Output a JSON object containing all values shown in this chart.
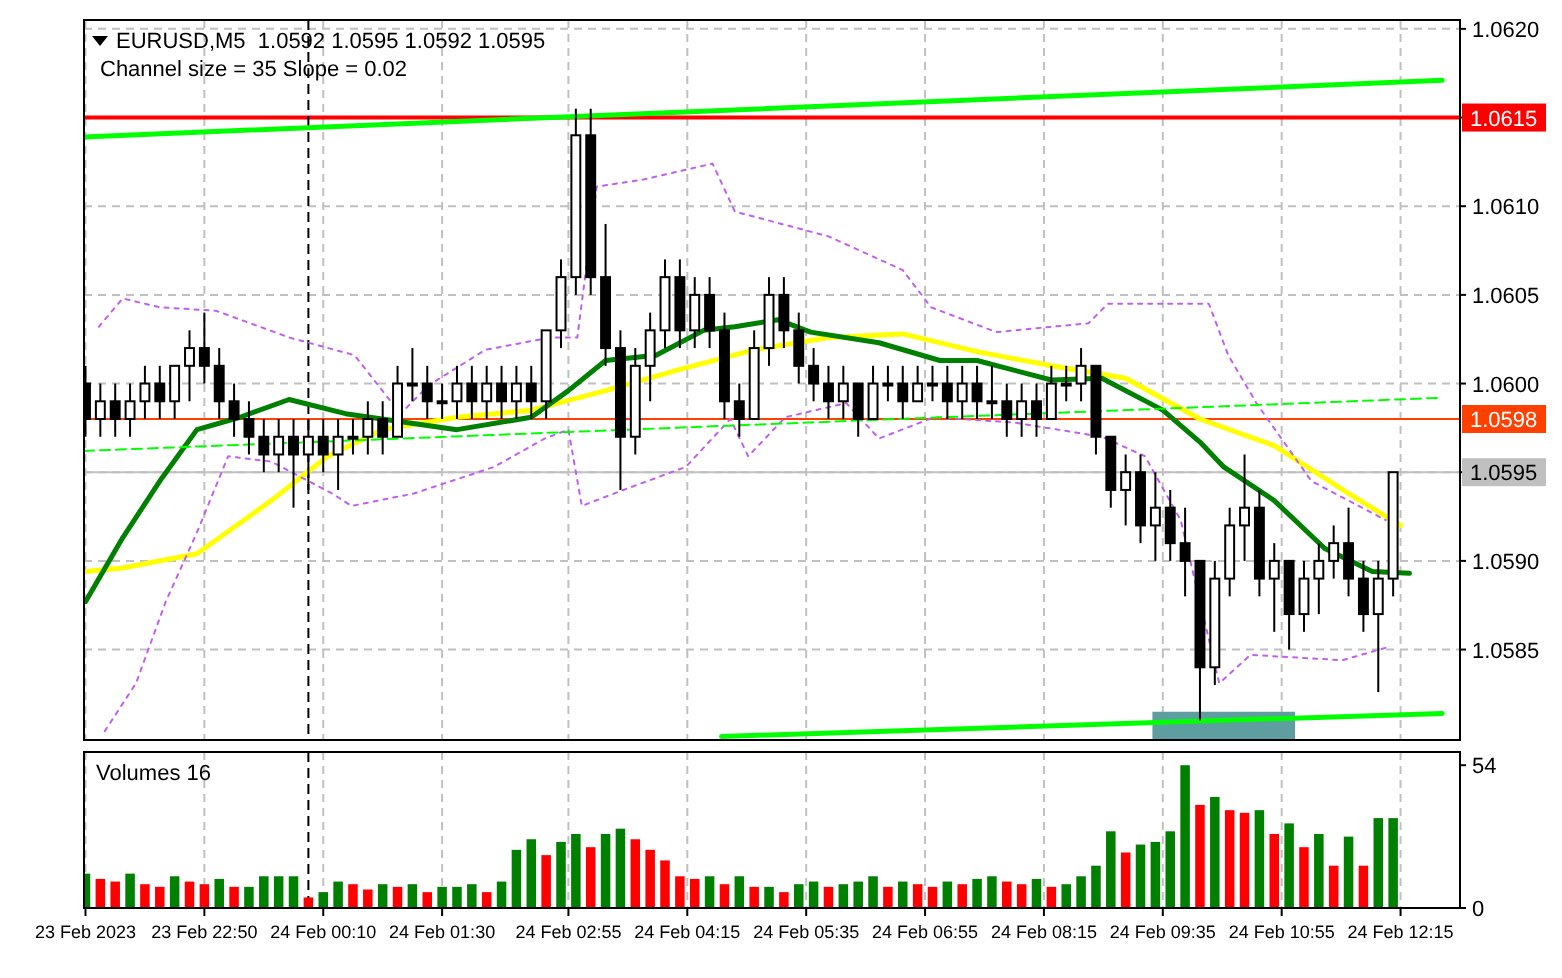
{
  "chart_data": [
    {
      "type": "candlestick",
      "title": "EURUSD,M5  1.0592 1.0595 1.0592 1.0595",
      "subtitle": "Channel size = 35 Slope = 0.02",
      "color": "#000000",
      "x": [
        "2023-02-23T21:30",
        "2023-02-23T21:40",
        "2023-02-23T21:50",
        "2023-02-23T22:00",
        "2023-02-23T22:10",
        "2023-02-23T22:20",
        "2023-02-23T22:30",
        "2023-02-23T22:40",
        "2023-02-23T22:50",
        "2023-02-23T23:00",
        "2023-02-23T23:10",
        "2023-02-23T23:20",
        "2023-02-23T23:30",
        "2023-02-23T23:40",
        "2023-02-23T23:50",
        "2023-02-24T00:00",
        "2023-02-24T00:10",
        "2023-02-24T00:20",
        "2023-02-24T00:30",
        "2023-02-24T00:40",
        "2023-02-24T00:50",
        "2023-02-24T01:00",
        "2023-02-24T01:10",
        "2023-02-24T01:20",
        "2023-02-24T01:30",
        "2023-02-24T01:40",
        "2023-02-24T01:50",
        "2023-02-24T02:00",
        "2023-02-24T02:10",
        "2023-02-24T02:20",
        "2023-02-24T02:30",
        "2023-02-24T02:40",
        "2023-02-24T02:50",
        "2023-02-24T03:00",
        "2023-02-24T03:10",
        "2023-02-24T03:20",
        "2023-02-24T03:30",
        "2023-02-24T03:40",
        "2023-02-24T03:50",
        "2023-02-24T04:00",
        "2023-02-24T04:10",
        "2023-02-24T04:20",
        "2023-02-24T04:30",
        "2023-02-24T04:40",
        "2023-02-24T04:50",
        "2023-02-24T05:00",
        "2023-02-24T05:10",
        "2023-02-24T05:20",
        "2023-02-24T05:30",
        "2023-02-24T05:40",
        "2023-02-24T05:50",
        "2023-02-24T06:00",
        "2023-02-24T06:10",
        "2023-02-24T06:20",
        "2023-02-24T06:30",
        "2023-02-24T06:40",
        "2023-02-24T06:50",
        "2023-02-24T07:00",
        "2023-02-24T07:10",
        "2023-02-24T07:20",
        "2023-02-24T07:30",
        "2023-02-24T07:40",
        "2023-02-24T07:50",
        "2023-02-24T08:00",
        "2023-02-24T08:10",
        "2023-02-24T08:20",
        "2023-02-24T08:30",
        "2023-02-24T08:40",
        "2023-02-24T08:50",
        "2023-02-24T09:00",
        "2023-02-24T09:10",
        "2023-02-24T09:20",
        "2023-02-24T09:30",
        "2023-02-24T09:40",
        "2023-02-24T09:50",
        "2023-02-24T10:00",
        "2023-02-24T10:10",
        "2023-02-24T10:20",
        "2023-02-24T10:30",
        "2023-02-24T10:40",
        "2023-02-24T10:50",
        "2023-02-24T11:00",
        "2023-02-24T11:10",
        "2023-02-24T11:20",
        "2023-02-24T11:30",
        "2023-02-24T11:40",
        "2023-02-24T11:50",
        "2023-02-24T12:00",
        "2023-02-24T12:10"
      ],
      "ohlc": [
        [
          1.06,
          1.0601,
          1.0597,
          1.0598
        ],
        [
          1.0598,
          1.06,
          1.0597,
          1.0599
        ],
        [
          1.0599,
          1.06,
          1.0597,
          1.0598
        ],
        [
          1.0598,
          1.06,
          1.0597,
          1.0599
        ],
        [
          1.0599,
          1.0601,
          1.0598,
          1.06
        ],
        [
          1.06,
          1.0601,
          1.0598,
          1.0599
        ],
        [
          1.0599,
          1.0601,
          1.0598,
          1.0601
        ],
        [
          1.0601,
          1.0603,
          1.0599,
          1.0602
        ],
        [
          1.0602,
          1.0604,
          1.06,
          1.0601
        ],
        [
          1.0601,
          1.0602,
          1.0598,
          1.0599
        ],
        [
          1.0599,
          1.06,
          1.0597,
          1.0598
        ],
        [
          1.0598,
          1.0599,
          1.0596,
          1.0597
        ],
        [
          1.0597,
          1.0598,
          1.0595,
          1.0596
        ],
        [
          1.0596,
          1.0598,
          1.0595,
          1.0597
        ],
        [
          1.0597,
          1.0598,
          1.0593,
          1.0596
        ],
        [
          1.0596,
          1.0598,
          1.0594,
          1.0597
        ],
        [
          1.0597,
          1.0598,
          1.0595,
          1.0596
        ],
        [
          1.0596,
          1.0598,
          1.0594,
          1.0597
        ],
        [
          1.0597,
          1.0598,
          1.0596,
          1.0597
        ],
        [
          1.0597,
          1.0599,
          1.0596,
          1.0598
        ],
        [
          1.0598,
          1.0599,
          1.0596,
          1.0597
        ],
        [
          1.0597,
          1.0601,
          1.0597,
          1.06
        ],
        [
          1.06,
          1.0602,
          1.0599,
          1.06
        ],
        [
          1.06,
          1.0601,
          1.0598,
          1.0599
        ],
        [
          1.0599,
          1.06,
          1.0598,
          1.0599
        ],
        [
          1.0599,
          1.0601,
          1.0598,
          1.06
        ],
        [
          1.06,
          1.0601,
          1.0598,
          1.0599
        ],
        [
          1.0599,
          1.0601,
          1.0598,
          1.06
        ],
        [
          1.06,
          1.0601,
          1.0598,
          1.0599
        ],
        [
          1.0599,
          1.0601,
          1.0598,
          1.06
        ],
        [
          1.06,
          1.0601,
          1.0598,
          1.0599
        ],
        [
          1.0599,
          1.0603,
          1.0598,
          1.0603
        ],
        [
          1.0603,
          1.0607,
          1.0602,
          1.0606
        ],
        [
          1.0606,
          1.06155,
          1.0605,
          1.0614
        ],
        [
          1.0614,
          1.06155,
          1.0605,
          1.0606
        ],
        [
          1.0606,
          1.0609,
          1.0601,
          1.0602
        ],
        [
          1.0602,
          1.0603,
          1.0594,
          1.0597
        ],
        [
          1.0597,
          1.0602,
          1.0596,
          1.0601
        ],
        [
          1.0601,
          1.0604,
          1.0599,
          1.0603
        ],
        [
          1.0603,
          1.0607,
          1.0602,
          1.0606
        ],
        [
          1.0606,
          1.0607,
          1.0602,
          1.0603
        ],
        [
          1.0603,
          1.0606,
          1.0602,
          1.0605
        ],
        [
          1.0605,
          1.0606,
          1.0602,
          1.0603
        ],
        [
          1.0603,
          1.0604,
          1.0598,
          1.0599
        ],
        [
          1.0599,
          1.06,
          1.0597,
          1.0598
        ],
        [
          1.0598,
          1.0603,
          1.0598,
          1.0602
        ],
        [
          1.0602,
          1.0606,
          1.0601,
          1.0605
        ],
        [
          1.0605,
          1.0606,
          1.0602,
          1.0603
        ],
        [
          1.0603,
          1.0604,
          1.06,
          1.0601
        ],
        [
          1.0601,
          1.0602,
          1.0599,
          1.06
        ],
        [
          1.06,
          1.0601,
          1.0598,
          1.0599
        ],
        [
          1.0599,
          1.0601,
          1.0598,
          1.06
        ],
        [
          1.06,
          1.06,
          1.0597,
          1.0598
        ],
        [
          1.0598,
          1.0601,
          1.0598,
          1.06
        ],
        [
          1.06,
          1.0601,
          1.0599,
          1.06
        ],
        [
          1.06,
          1.0601,
          1.0598,
          1.0599
        ],
        [
          1.0599,
          1.0601,
          1.0599,
          1.06
        ],
        [
          1.06,
          1.0601,
          1.0599,
          1.06
        ],
        [
          1.06,
          1.0601,
          1.0598,
          1.0599
        ],
        [
          1.0599,
          1.0601,
          1.0598,
          1.06
        ],
        [
          1.06,
          1.0601,
          1.0598,
          1.0599
        ],
        [
          1.0599,
          1.0601,
          1.0598,
          1.0599
        ],
        [
          1.0599,
          1.06,
          1.0597,
          1.0598
        ],
        [
          1.0598,
          1.06,
          1.0597,
          1.0599
        ],
        [
          1.0599,
          1.06,
          1.0597,
          1.0598
        ],
        [
          1.0598,
          1.0601,
          1.0598,
          1.06
        ],
        [
          1.06,
          1.0601,
          1.0599,
          1.06
        ],
        [
          1.06,
          1.0602,
          1.0599,
          1.0601
        ],
        [
          1.0601,
          1.0601,
          1.0596,
          1.0597
        ],
        [
          1.0597,
          1.0597,
          1.0593,
          1.0594
        ],
        [
          1.0594,
          1.0596,
          1.0592,
          1.0595
        ],
        [
          1.0595,
          1.0596,
          1.0591,
          1.0592
        ],
        [
          1.0592,
          1.0595,
          1.059,
          1.0593
        ],
        [
          1.0593,
          1.0594,
          1.059,
          1.0591
        ],
        [
          1.0591,
          1.0593,
          1.0588,
          1.059
        ],
        [
          1.059,
          1.059,
          1.0581,
          1.0584
        ],
        [
          1.0584,
          1.059,
          1.0583,
          1.0589
        ],
        [
          1.0589,
          1.0593,
          1.0588,
          1.0592
        ],
        [
          1.0592,
          1.0596,
          1.059,
          1.0593
        ],
        [
          1.0593,
          1.0594,
          1.0588,
          1.0589
        ],
        [
          1.0589,
          1.0591,
          1.0586,
          1.059
        ],
        [
          1.059,
          1.059,
          1.0585,
          1.0587
        ],
        [
          1.0587,
          1.059,
          1.0586,
          1.0589
        ],
        [
          1.0589,
          1.0591,
          1.0587,
          1.059
        ],
        [
          1.059,
          1.0592,
          1.0589,
          1.0591
        ],
        [
          1.0591,
          1.0593,
          1.0588,
          1.0589
        ],
        [
          1.0589,
          1.059,
          1.0586,
          1.0587
        ],
        [
          1.0587,
          1.059,
          1.05826,
          1.0589
        ],
        [
          1.0589,
          1.0595,
          1.0588,
          1.0595
        ]
      ],
      "series": [
        {
          "type": "line",
          "color": "#ffff00",
          "line_style": "solid",
          "x": [
            "2023-02-23T21:30",
            "2023-02-23T21:55",
            "2023-02-23T22:45",
            "2023-02-23T23:35",
            "2023-02-24T00:13",
            "2023-02-24T00:50",
            "2023-02-24T01:40",
            "2023-02-24T02:30",
            "2023-02-24T03:20",
            "2023-02-24T04:10",
            "2023-02-24T05:00",
            "2023-02-24T05:50",
            "2023-02-24T06:40",
            "2023-02-24T07:30",
            "2023-02-24T08:20",
            "2023-02-24T09:10",
            "2023-02-24T10:00",
            "2023-02-24T10:50",
            "2023-02-24T11:40",
            "2023-02-24T12:15"
          ],
          "values": [
            1.05894,
            1.05896,
            1.05904,
            1.05934,
            1.05959,
            1.05974,
            1.05981,
            1.05985,
            1.05996,
            1.06008,
            1.06019,
            1.06026,
            1.06028,
            1.06018,
            1.0601,
            1.06003,
            1.0598,
            1.05965,
            1.05938,
            1.0592
          ]
        },
        {
          "type": "line",
          "color": "#008000",
          "line_style": "solid",
          "x": [
            "2023-02-23T21:30",
            "2023-02-23T21:55",
            "2023-02-23T22:20",
            "2023-02-23T22:45",
            "2023-02-23T23:14",
            "2023-02-23T23:47",
            "2023-02-24T00:25",
            "2023-02-24T01:06",
            "2023-02-24T01:40",
            "2023-02-24T02:30",
            "2023-02-24T02:55",
            "2023-02-24T03:20",
            "2023-02-24T03:54",
            "2023-02-24T04:26",
            "2023-02-24T04:47",
            "2023-02-24T05:16",
            "2023-02-24T05:38",
            "2023-02-24T06:24",
            "2023-02-24T07:05",
            "2023-02-24T07:30",
            "2023-02-24T08:20",
            "2023-02-24T08:54",
            "2023-02-24T09:35",
            "2023-02-24T10:00",
            "2023-02-24T10:16",
            "2023-02-24T10:50",
            "2023-02-24T11:24",
            "2023-02-24T11:56",
            "2023-02-24T12:21"
          ],
          "values": [
            1.05877,
            1.05913,
            1.05945,
            1.05974,
            1.05981,
            1.05991,
            1.05983,
            1.05978,
            1.05974,
            1.05981,
            1.05996,
            1.06013,
            1.06016,
            1.0603,
            1.06032,
            1.06036,
            1.06029,
            1.06023,
            1.06013,
            1.06013,
            1.06002,
            1.06003,
            1.05985,
            1.05967,
            1.05953,
            1.05934,
            1.05907,
            1.05894,
            1.05893
          ]
        },
        {
          "type": "line",
          "color": "#c060f0",
          "line_style": "dotted",
          "x": [
            "2023-02-23T21:39",
            "2023-02-23T21:55",
            "2023-02-23T22:20",
            "2023-02-23T22:58",
            "2023-02-23T23:47",
            "2023-02-24T00:31",
            "2023-02-24T01:02",
            "2023-02-24T01:21",
            "2023-02-24T01:59",
            "2023-02-24T02:43",
            "2023-02-24T03:01",
            "2023-02-24T03:14",
            "2023-02-24T03:45",
            "2023-02-24T04:32",
            "2023-02-24T04:47",
            "2023-02-24T05:50",
            "2023-02-24T06:40",
            "2023-02-24T06:59",
            "2023-02-24T07:43",
            "2023-02-24T08:45",
            "2023-02-24T08:58",
            "2023-02-24T10:06",
            "2023-02-24T10:19",
            "2023-02-24T10:38",
            "2023-02-24T11:15",
            "2023-02-24T12:05"
          ],
          "values": [
            1.06032,
            1.06048,
            1.06043,
            1.06041,
            1.06026,
            1.06016,
            1.05983,
            1.05999,
            1.06019,
            1.06026,
            1.06026,
            1.06111,
            1.06115,
            1.06124,
            1.06097,
            1.06083,
            1.06064,
            1.06043,
            1.06029,
            1.06034,
            1.06045,
            1.06045,
            1.06016,
            1.05989,
            1.05945,
            1.05923
          ]
        },
        {
          "type": "line",
          "color": "#c060f0",
          "line_style": "dotted",
          "x": [
            "2023-02-23T21:43",
            "2023-02-23T22:04",
            "2023-02-23T22:24",
            "2023-02-23T22:45",
            "2023-02-23T23:06",
            "2023-02-23T23:35",
            "2023-02-24T00:16",
            "2023-02-24T00:29",
            "2023-02-24T01:11",
            "2023-02-24T02:05",
            "2023-02-24T02:39",
            "2023-02-24T02:55",
            "2023-02-24T03:04",
            "2023-02-24T03:32",
            "2023-02-24T04:14",
            "2023-02-24T04:44",
            "2023-02-24T04:56",
            "2023-02-24T05:21",
            "2023-02-24T06:02",
            "2023-02-24T06:24",
            "2023-02-24T07:01",
            "2023-02-24T07:55",
            "2023-02-24T08:54",
            "2023-02-24T09:23",
            "2023-02-24T09:47",
            "2023-02-24T10:13",
            "2023-02-24T10:34",
            "2023-02-24T11:36",
            "2023-02-24T12:05"
          ],
          "values": [
            1.05804,
            1.05831,
            1.05877,
            1.05916,
            1.05959,
            1.05956,
            1.05938,
            1.05931,
            1.05938,
            1.05953,
            1.05969,
            1.05974,
            1.05931,
            1.0594,
            1.05953,
            1.0598,
            1.05959,
            1.05981,
            1.05989,
            1.05969,
            1.05981,
            1.05978,
            1.0597,
            1.05959,
            1.05923,
            1.05831,
            1.05847,
            1.05844,
            1.05851
          ]
        },
        {
          "type": "line",
          "color": "#00ff00",
          "line_style": "solid",
          "x": [
            "2023-02-23T21:29",
            "2023-02-24T12:43"
          ],
          "values": [
            1.06139,
            1.06171
          ]
        },
        {
          "type": "line",
          "color": "#00ff00",
          "line_style": "solid",
          "x": [
            "2023-02-24T04:38",
            "2023-02-24T12:43"
          ],
          "values": [
            1.05801,
            1.05814
          ]
        },
        {
          "type": "line",
          "color": "#00ff00",
          "line_style": "dashed",
          "x": [
            "2023-02-23T21:29",
            "2023-02-24T12:43"
          ],
          "values": [
            1.05962,
            1.05992
          ]
        },
        {
          "type": "area",
          "color": "#5f9ea0",
          "x": [
            "2023-02-24T09:28",
            "2023-02-24T11:04"
          ],
          "values": [
            1.05815,
            1.05815
          ]
        }
      ],
      "xlim": [
        "2023-02-23T21:29",
        "2023-02-24T12:55"
      ],
      "ylim": [
        1.05799,
        1.06205
      ],
      "xticks": [
        {
          "value": "2023-02-23T21:30",
          "label": null
        },
        {
          "value": "2023-02-23T22:50",
          "label": null
        },
        {
          "value": "2023-02-24T00:10",
          "label": null
        },
        {
          "value": "2023-02-24T01:30",
          "label": null
        },
        {
          "value": "2023-02-24T02:55",
          "label": null
        },
        {
          "value": "2023-02-24T04:15",
          "label": null
        },
        {
          "value": "2023-02-24T05:35",
          "label": null
        },
        {
          "value": "2023-02-24T06:55",
          "label": null
        },
        {
          "value": "2023-02-24T08:15",
          "label": null
        },
        {
          "value": "2023-02-24T09:35",
          "label": null
        },
        {
          "value": "2023-02-24T10:55",
          "label": null
        },
        {
          "value": "2023-02-24T12:15",
          "label": null
        }
      ],
      "yticks": [
        {
          "value": 1.062,
          "label": "1.0620"
        },
        {
          "value": 1.0615,
          "label": null
        },
        {
          "value": 1.061,
          "label": "1.0610"
        },
        {
          "value": 1.0605,
          "label": "1.0605"
        },
        {
          "value": 1.06,
          "label": "1.0600"
        },
        {
          "value": 1.0595,
          "label": null
        },
        {
          "value": 1.059,
          "label": "1.0590"
        },
        {
          "value": 1.0585,
          "label": "1.0585"
        }
      ],
      "grid": true,
      "tick_labels": "y",
      "ref_lines": [
        {
          "axis": "y",
          "value": 1.0615,
          "label": "1.0615",
          "color": "#ff0000"
        },
        {
          "axis": "y",
          "value": 1.0598,
          "label": "1.0598",
          "color": "#ff4000"
        },
        {
          "axis": "y",
          "value": 1.0595,
          "label": "1.0595",
          "color": "#c0c0c0"
        },
        {
          "axis": "x",
          "value": "2023-02-24T00:00",
          "color": "#000000",
          "line_style": "dashed"
        }
      ]
    },
    {
      "type": "bar",
      "title": "Volumes 16",
      "x": [
        "2023-02-23T21:30",
        "2023-02-23T21:40",
        "2023-02-23T21:50",
        "2023-02-23T22:00",
        "2023-02-23T22:10",
        "2023-02-23T22:20",
        "2023-02-23T22:30",
        "2023-02-23T22:40",
        "2023-02-23T22:50",
        "2023-02-23T23:00",
        "2023-02-23T23:10",
        "2023-02-23T23:20",
        "2023-02-23T23:30",
        "2023-02-23T23:40",
        "2023-02-23T23:50",
        "2023-02-24T00:00",
        "2023-02-24T00:10",
        "2023-02-24T00:20",
        "2023-02-24T00:30",
        "2023-02-24T00:40",
        "2023-02-24T00:50",
        "2023-02-24T01:00",
        "2023-02-24T01:10",
        "2023-02-24T01:20",
        "2023-02-24T01:30",
        "2023-02-24T01:40",
        "2023-02-24T01:50",
        "2023-02-24T02:00",
        "2023-02-24T02:10",
        "2023-02-24T02:20",
        "2023-02-24T02:30",
        "2023-02-24T02:40",
        "2023-02-24T02:50",
        "2023-02-24T03:00",
        "2023-02-24T03:10",
        "2023-02-24T03:20",
        "2023-02-24T03:30",
        "2023-02-24T03:40",
        "2023-02-24T03:50",
        "2023-02-24T04:00",
        "2023-02-24T04:10",
        "2023-02-24T04:20",
        "2023-02-24T04:30",
        "2023-02-24T04:40",
        "2023-02-24T04:50",
        "2023-02-24T05:00",
        "2023-02-24T05:10",
        "2023-02-24T05:20",
        "2023-02-24T05:30",
        "2023-02-24T05:40",
        "2023-02-24T05:50",
        "2023-02-24T06:00",
        "2023-02-24T06:10",
        "2023-02-24T06:20",
        "2023-02-24T06:30",
        "2023-02-24T06:40",
        "2023-02-24T06:50",
        "2023-02-24T07:00",
        "2023-02-24T07:10",
        "2023-02-24T07:20",
        "2023-02-24T07:30",
        "2023-02-24T07:40",
        "2023-02-24T07:50",
        "2023-02-24T08:00",
        "2023-02-24T08:10",
        "2023-02-24T08:20",
        "2023-02-24T08:30",
        "2023-02-24T08:40",
        "2023-02-24T08:50",
        "2023-02-24T09:00",
        "2023-02-24T09:10",
        "2023-02-24T09:20",
        "2023-02-24T09:30",
        "2023-02-24T09:40",
        "2023-02-24T09:50",
        "2023-02-24T10:00",
        "2023-02-24T10:10",
        "2023-02-24T10:20",
        "2023-02-24T10:30",
        "2023-02-24T10:40",
        "2023-02-24T10:50",
        "2023-02-24T11:00",
        "2023-02-24T11:10",
        "2023-02-24T11:20",
        "2023-02-24T11:30",
        "2023-02-24T11:40",
        "2023-02-24T11:50",
        "2023-02-24T12:00",
        "2023-02-24T12:10"
      ],
      "values": [
        13,
        11,
        10,
        13,
        9,
        8,
        12,
        10,
        9,
        11,
        8,
        8,
        12,
        12,
        12,
        4,
        6,
        10,
        9,
        7,
        9,
        8,
        9,
        6,
        8,
        8,
        9,
        6,
        10,
        22,
        26,
        20,
        25,
        28,
        23,
        28,
        30,
        26,
        22,
        18,
        12,
        11,
        12,
        9,
        12,
        8,
        8,
        6,
        9,
        10,
        8,
        9,
        10,
        12,
        8,
        10,
        9,
        8,
        10,
        9,
        11,
        12,
        10,
        9,
        11,
        8,
        9,
        12,
        16,
        29,
        21,
        24,
        25,
        29,
        54,
        39,
        42,
        37,
        36,
        37,
        28,
        32,
        23,
        28,
        16,
        27,
        16,
        34,
        34
      ],
      "colors": [
        "#008000",
        "#ff0000",
        "#ff0000",
        "#008000",
        "#ff0000",
        "#ff0000",
        "#008000",
        "#ff0000",
        "#ff0000",
        "#008000",
        "#ff0000",
        "#008000",
        "#008000",
        "#008000",
        "#008000",
        "#ff0000",
        "#008000",
        "#008000",
        "#ff0000",
        "#ff0000",
        "#008000",
        "#ff0000",
        "#008000",
        "#ff0000",
        "#008000",
        "#008000",
        "#008000",
        "#ff0000",
        "#008000",
        "#008000",
        "#008000",
        "#ff0000",
        "#008000",
        "#008000",
        "#ff0000",
        "#008000",
        "#008000",
        "#ff0000",
        "#ff0000",
        "#ff0000",
        "#ff0000",
        "#ff0000",
        "#008000",
        "#ff0000",
        "#008000",
        "#ff0000",
        "#008000",
        "#ff0000",
        "#008000",
        "#008000",
        "#ff0000",
        "#008000",
        "#008000",
        "#008000",
        "#ff0000",
        "#008000",
        "#ff0000",
        "#ff0000",
        "#008000",
        "#ff0000",
        "#008000",
        "#008000",
        "#ff0000",
        "#ff0000",
        "#008000",
        "#ff0000",
        "#008000",
        "#008000",
        "#008000",
        "#008000",
        "#ff0000",
        "#008000",
        "#008000",
        "#008000",
        "#008000",
        "#ff0000",
        "#008000",
        "#ff0000",
        "#ff0000",
        "#008000",
        "#ff0000",
        "#008000",
        "#ff0000",
        "#008000",
        "#ff0000",
        "#008000",
        "#ff0000",
        "#008000",
        "#008000"
      ],
      "xlim": [
        "2023-02-23T21:29",
        "2023-02-24T12:55"
      ],
      "ylim": [
        0,
        59
      ],
      "xticks": [
        {
          "value": "2023-02-23T21:30",
          "label": "23 Feb 2023"
        },
        {
          "value": "2023-02-23T22:50",
          "label": "23 Feb 22:50"
        },
        {
          "value": "2023-02-24T00:10",
          "label": "24 Feb 00:10"
        },
        {
          "value": "2023-02-24T01:30",
          "label": "24 Feb 01:30"
        },
        {
          "value": "2023-02-24T02:55",
          "label": "24 Feb 02:55"
        },
        {
          "value": "2023-02-24T04:15",
          "label": "24 Feb 04:15"
        },
        {
          "value": "2023-02-24T05:35",
          "label": "24 Feb 05:35"
        },
        {
          "value": "2023-02-24T06:55",
          "label": "24 Feb 06:55"
        },
        {
          "value": "2023-02-24T08:15",
          "label": "24 Feb 08:15"
        },
        {
          "value": "2023-02-24T09:35",
          "label": "24 Feb 09:35"
        },
        {
          "value": "2023-02-24T10:55",
          "label": "24 Feb 10:55"
        },
        {
          "value": "2023-02-24T12:15",
          "label": "24 Feb 12:15"
        }
      ],
      "yticks": [
        54,
        0
      ],
      "grid": "x",
      "ref_lines": [
        {
          "axis": "x",
          "value": "2023-02-24T00:00",
          "color": "#000000",
          "line_style": "dashed"
        }
      ]
    }
  ]
}
